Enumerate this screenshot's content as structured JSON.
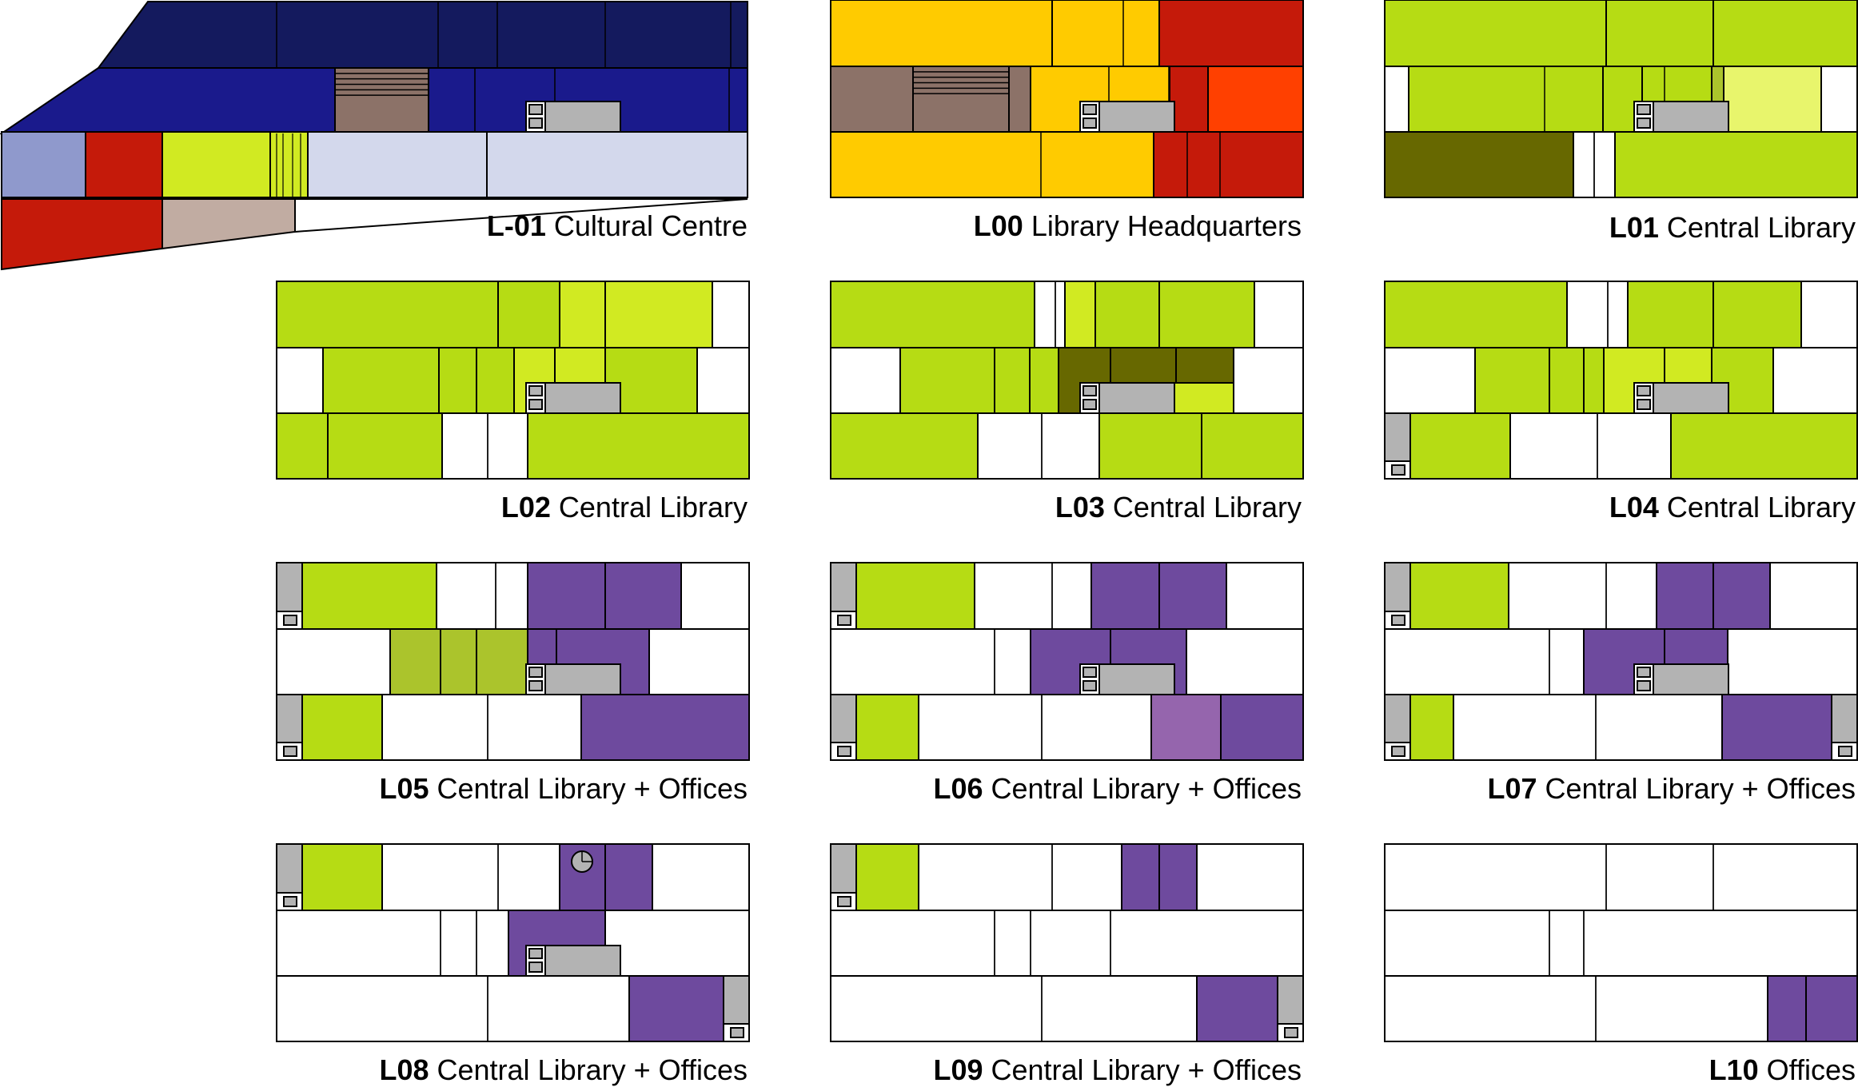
{
  "colors": {
    "culture_dark_navy": "#141a5e",
    "culture_blue": "#1a1a8c",
    "culture_light_blue": "#8f99cc",
    "culture_red": "#c51a0a",
    "culture_pale": "#d3d8ec",
    "culture_beige": "#c1aca2",
    "library_green": "#b6dc14",
    "library_light_green": "#d1ea22",
    "library_pale_green": "#e8f56c",
    "library_olive": "#676800",
    "library_moss": "#abc42c",
    "hq_yellow": "#ffcb00",
    "hq_red": "#c51a0a",
    "hq_orange_red": "#ff4000",
    "stair_brown": "#8c7268",
    "office_purple": "#6e4a9e",
    "office_light_purple": "#9565ad",
    "core_grey": "#b3b3b3",
    "empty": "#ffffff"
  },
  "floors": [
    {
      "id": "L-01",
      "code": "L-01",
      "name": "Cultural Centre"
    },
    {
      "id": "L00",
      "code": "L00",
      "name": "Library Headquarters"
    },
    {
      "id": "L01",
      "code": "L01",
      "name": "Central Library"
    },
    {
      "id": "L02",
      "code": "L02",
      "name": "Central Library"
    },
    {
      "id": "L03",
      "code": "L03",
      "name": "Central Library"
    },
    {
      "id": "L04",
      "code": "L04",
      "name": "Central Library"
    },
    {
      "id": "L05",
      "code": "L05",
      "name": "Central Library + Offices"
    },
    {
      "id": "L06",
      "code": "L06",
      "name": "Central Library + Offices"
    },
    {
      "id": "L07",
      "code": "L07",
      "name": "Central Library + Offices"
    },
    {
      "id": "L08",
      "code": "L08",
      "name": "Central Library + Offices"
    },
    {
      "id": "L09",
      "code": "L09",
      "name": "Central Library + Offices"
    },
    {
      "id": "L10",
      "code": "L10",
      "name": "Offices"
    }
  ]
}
